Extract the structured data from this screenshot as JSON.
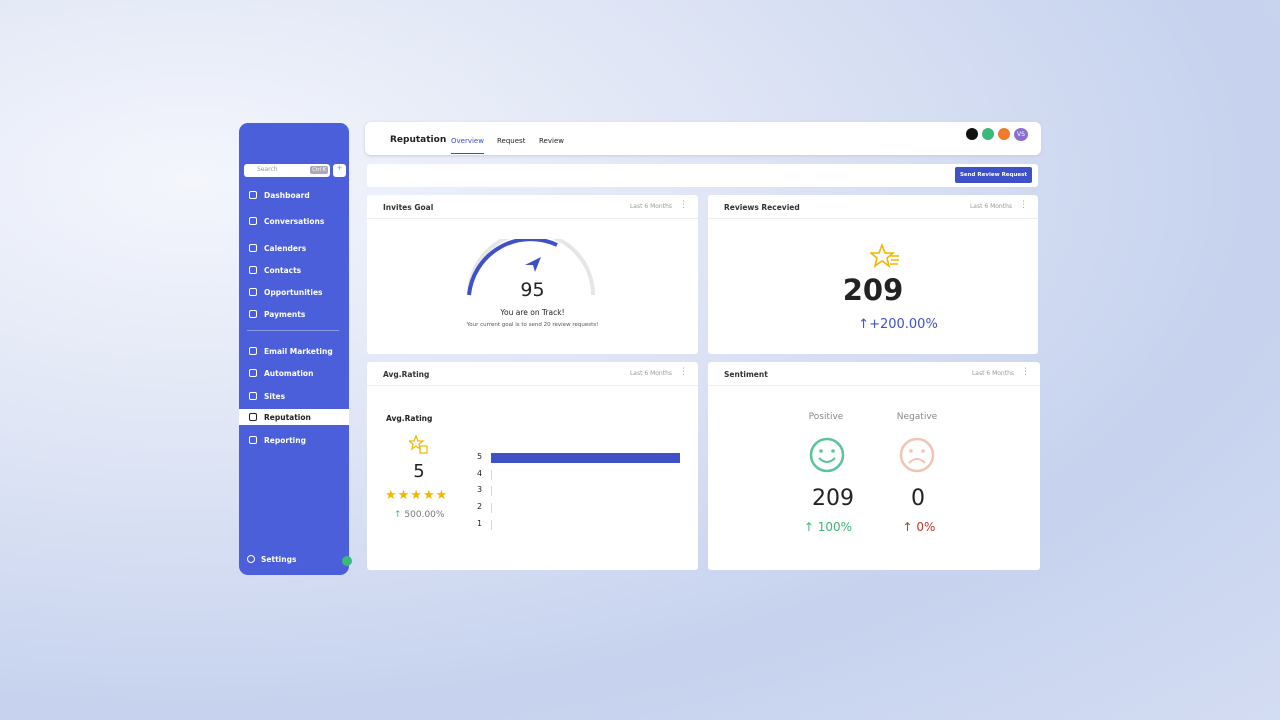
{
  "sidebar": {
    "search_placeholder": "Search",
    "shortcut": "Ctrl K",
    "nav": [
      "Dashboard",
      "Conversations",
      "Calenders",
      "Contacts",
      "Opportunities",
      "Payments",
      "Email Marketing",
      "Automation",
      "Sites",
      "Reputation",
      "Reporting"
    ],
    "settings": "Settings"
  },
  "header": {
    "title": "Reputation",
    "tabs": [
      "Overview",
      "Request",
      "Review"
    ],
    "avatar": "VS"
  },
  "toolbar": {
    "button": "Send Review Request"
  },
  "cards": {
    "invites_goal": {
      "title": "Invites Goal",
      "period": "Last 6 Months",
      "value": 95,
      "status": "You are on Track!",
      "note": "Your current goal is to send 20 review requests!"
    },
    "reviews_received": {
      "title": "Reviews Recevied",
      "period": "Last 6 Months",
      "value": 209,
      "change": "+200.00%"
    },
    "avg_rating": {
      "title": "Avg.Rating",
      "period": "Last 6 Months",
      "subtitle": "Avg.Rating",
      "value": 5,
      "change": "500.00%",
      "distribution": {
        "ratings": [
          5,
          4,
          3,
          2,
          1
        ],
        "counts": [
          209,
          0,
          0,
          0,
          0
        ]
      }
    },
    "sentiment": {
      "title": "Sentiment",
      "period": "Last 6 Months",
      "positive": {
        "label": "Positive",
        "value": 209,
        "change": "100%"
      },
      "negative": {
        "label": "Negative",
        "value": 0,
        "change": "0%"
      }
    }
  }
}
